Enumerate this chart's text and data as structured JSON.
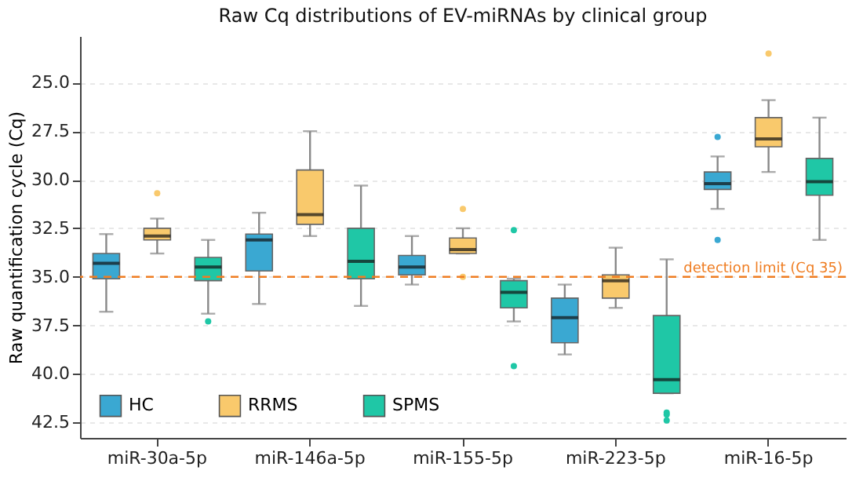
{
  "chart_data": {
    "type": "box",
    "title": "Raw Cq distributions of EV-miRNAs by clinical group",
    "ylabel": "Raw quantification cycle (Cq)",
    "categories": [
      "miR-30a-5p",
      "miR-146a-5p",
      "miR-155-5p",
      "miR-223-5p",
      "miR-16-5p"
    ],
    "series": [
      {
        "name": "HC",
        "color": "#3aa8d2",
        "boxes": [
          {
            "low": 32.8,
            "q1": 33.8,
            "median": 34.3,
            "q3": 35.1,
            "high": 36.8
          },
          {
            "low": 31.7,
            "q1": 32.8,
            "median": 33.1,
            "q3": 34.7,
            "high": 36.4
          },
          {
            "low": 32.9,
            "q1": 33.9,
            "median": 34.5,
            "q3": 34.9,
            "high": 35.4
          },
          {
            "low": 35.4,
            "q1": 36.1,
            "median": 37.1,
            "q3": 38.4,
            "high": 39.0
          },
          {
            "low": 28.8,
            "q1": 29.6,
            "median": 30.2,
            "q3": 30.5,
            "high": 31.5,
            "outliers": [
              27.8,
              33.1
            ]
          }
        ]
      },
      {
        "name": "RRMS",
        "color": "#f9c96c",
        "boxes": [
          {
            "low": 32.0,
            "q1": 32.5,
            "median": 32.9,
            "q3": 33.1,
            "high": 33.8,
            "outliers": [
              30.7
            ]
          },
          {
            "low": 27.5,
            "q1": 29.5,
            "median": 31.8,
            "q3": 32.3,
            "high": 32.9
          },
          {
            "low": 32.5,
            "q1": 33.0,
            "median": 33.6,
            "q3": 33.8,
            "high": 33.8,
            "outliers": [
              31.5,
              35.0
            ]
          },
          {
            "low": 33.5,
            "q1": 34.9,
            "median": 35.2,
            "q3": 36.1,
            "high": 36.6
          },
          {
            "low": 25.9,
            "q1": 26.8,
            "median": 27.9,
            "q3": 28.3,
            "high": 29.6,
            "outliers": [
              23.5
            ]
          }
        ]
      },
      {
        "name": "SPMS",
        "color": "#1fc7a6",
        "boxes": [
          {
            "low": 33.1,
            "q1": 34.0,
            "median": 34.5,
            "q3": 35.2,
            "high": 36.9,
            "outliers": [
              37.3
            ]
          },
          {
            "low": 30.3,
            "q1": 32.5,
            "median": 34.2,
            "q3": 35.1,
            "high": 36.5
          },
          {
            "low": 35.1,
            "q1": 35.2,
            "median": 35.8,
            "q3": 36.6,
            "high": 37.3,
            "outliers": [
              32.6,
              39.6
            ]
          },
          {
            "low": 34.1,
            "q1": 37.0,
            "median": 40.3,
            "q3": 41.0,
            "high": 41.0,
            "outliers": [
              42.0,
              42.1,
              42.4
            ]
          },
          {
            "low": 26.8,
            "q1": 28.9,
            "median": 30.1,
            "q3": 30.8,
            "high": 33.1
          }
        ]
      }
    ],
    "ylim": [
      43.3,
      22.6
    ],
    "yticks": [
      {
        "value": 25,
        "label": "25.0"
      },
      {
        "value": 27.5,
        "label": "27.5"
      },
      {
        "value": 30,
        "label": "30.0"
      },
      {
        "value": 32.5,
        "label": "32.5"
      },
      {
        "value": 35,
        "label": "35.0"
      },
      {
        "value": 37.5,
        "label": "37.5"
      },
      {
        "value": 40,
        "label": "40.0"
      },
      {
        "value": 42.5,
        "label": "42.5"
      }
    ],
    "ref_lines": [
      {
        "axis": "y",
        "value": 35,
        "label": "detection limit (Cq 35)",
        "color": "#ef7d22",
        "line_style": "dashed"
      }
    ],
    "grid": "y",
    "legend": "bottom left"
  }
}
